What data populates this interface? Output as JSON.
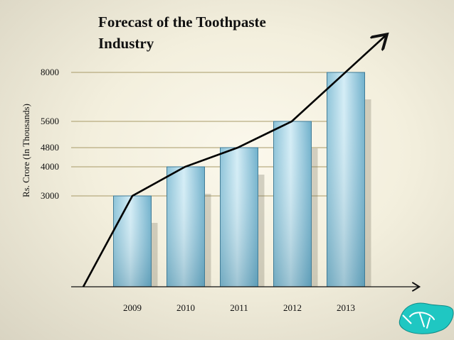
{
  "chart_data": {
    "type": "bar",
    "title": [
      "Forecast of the Toothpaste",
      "Industry"
    ],
    "xlabel": "",
    "ylabel": "Rs. Crore (In Thousands)",
    "categories": [
      "2009",
      "2010",
      "2011",
      "2012",
      "2013"
    ],
    "values": [
      3000,
      4000,
      4800,
      5600,
      8000
    ],
    "yticks": [
      3000,
      4000,
      4800,
      5600,
      8000
    ],
    "ylim": [
      0,
      8000
    ],
    "grid": "horizontal lines at tick values",
    "trend_line": true,
    "colors": {
      "bar_light": "#d2ecf5",
      "bar_dark": "#5ea5c3",
      "bar_edge": "#3f7a95",
      "gridline": "#a89a68",
      "axis": "#111111",
      "trend": "#000000",
      "accent": "#1fc7c2"
    }
  }
}
